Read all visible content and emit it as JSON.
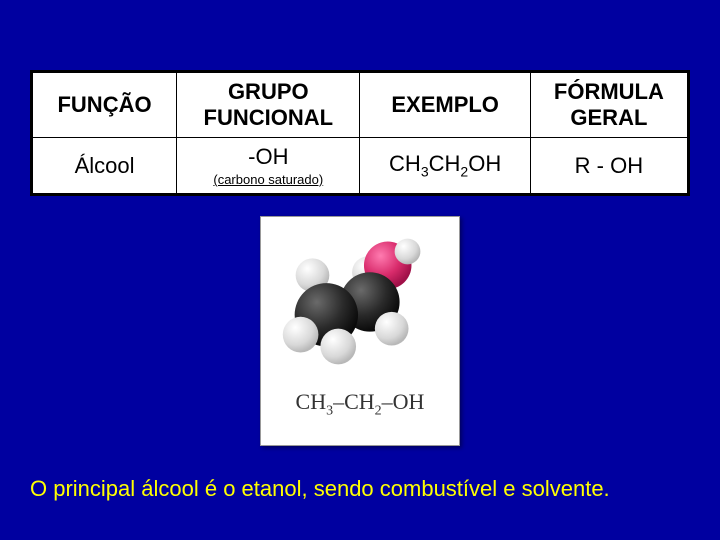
{
  "table": {
    "headers": [
      "FUNÇÃO",
      "GRUPO FUNCIONAL",
      "EXEMPLO",
      "FÓRMULA GERAL"
    ],
    "row": {
      "funcao": "Álcool",
      "grupo_main": "-OH",
      "grupo_sub": "(carbono saturado)",
      "exemplo_html": "CH<sub>3</sub>CH<sub>2</sub>OH",
      "formula": "R - OH"
    },
    "col_widths": [
      "22%",
      "28%",
      "26%",
      "24%"
    ]
  },
  "molecule": {
    "formula_html": "CH<sub>3</sub>&ndash;CH<sub>2</sub>&ndash;OH",
    "background": "#ffffff",
    "atoms": {
      "carbon_color": "#2a2a2a",
      "hydrogen_color": "#e8e8e8",
      "oxygen_color": "#d82b6b",
      "h_on_o_color": "#ffffff"
    }
  },
  "caption": "O principal álcool é o etanol, sendo combustível e solvente.",
  "colors": {
    "page_bg": "#0000a0",
    "caption_color": "#ffff00",
    "table_bg": "#ffffff",
    "table_border": "#000000",
    "text": "#000000"
  }
}
